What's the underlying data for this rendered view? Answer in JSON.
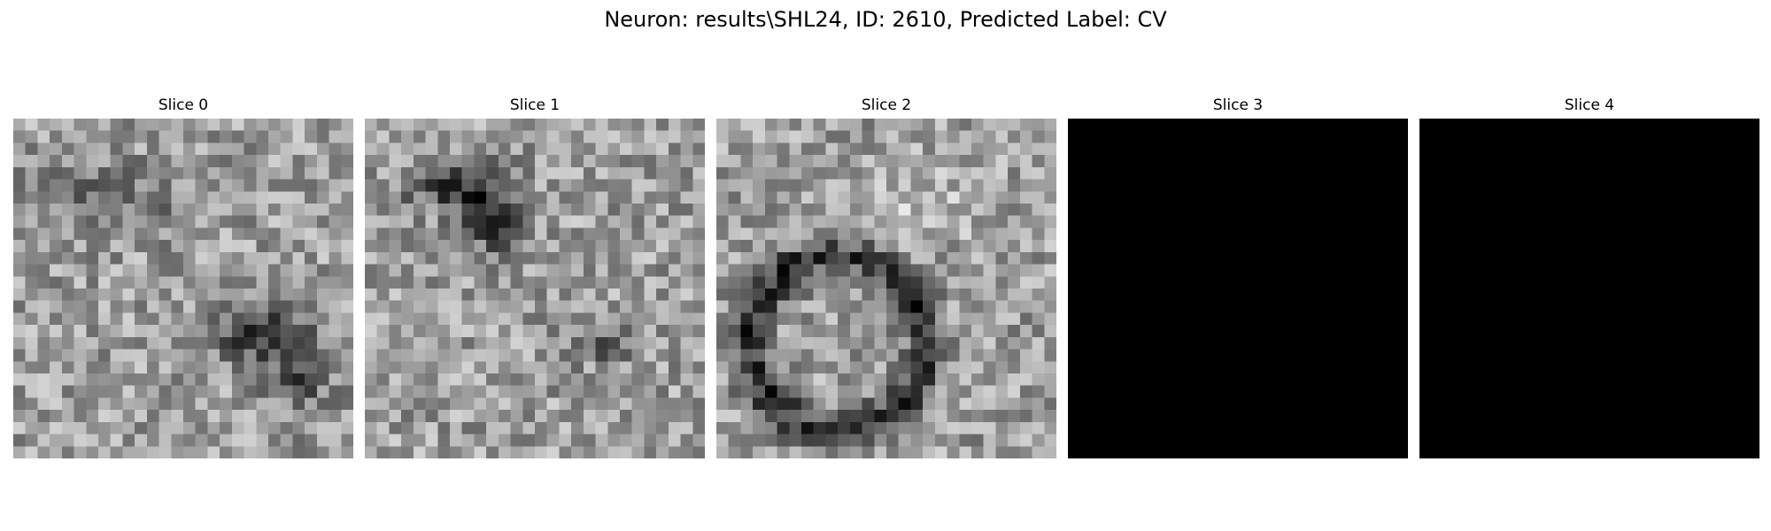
{
  "figure": {
    "suptitle": "Neuron: results\\SHL24, ID: 2610, Predicted Label: CV",
    "colormap": "gray",
    "grid_size": 28
  },
  "slices": [
    {
      "title": "Slice 0",
      "pattern": "texture-with-dark-blob-lower-right"
    },
    {
      "title": "Slice 1",
      "pattern": "texture-with-dark-streak-upper-left"
    },
    {
      "title": "Slice 2",
      "pattern": "texture-with-dark-ring"
    },
    {
      "title": "Slice 3",
      "pattern": "all-black"
    },
    {
      "title": "Slice 4",
      "pattern": "all-black"
    }
  ]
}
